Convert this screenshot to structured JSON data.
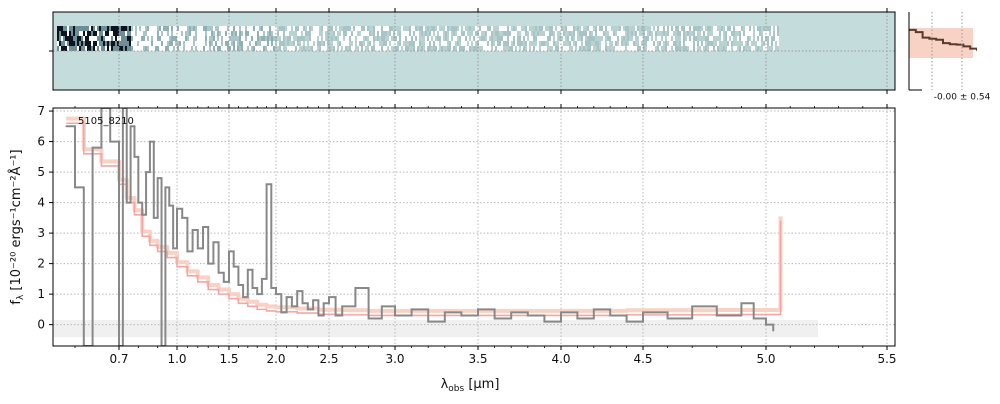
{
  "chart_data": {
    "type": "line",
    "xlabel": "λobs [μm]",
    "xlabel_main": "λ",
    "xlabel_sub": "obs",
    "xlabel_unit": " [μm]",
    "ylabel": "fλ [10⁻²⁰ ergs⁻¹cm⁻²Å⁻¹]",
    "ylabel_main": "f",
    "ylabel_sub": "λ",
    "ylabel_unit": " [10⁻²⁰ ergs⁻¹cm⁻²Å⁻¹]",
    "annotation": "5105_8210",
    "xtick_labels": [
      "0.7",
      "1.0",
      "1.5",
      "2.0",
      "2.5",
      "3.0",
      "3.5",
      "4.0",
      "4.5",
      "5.0",
      "5.5"
    ],
    "ytick_labels": [
      "0",
      "1",
      "2",
      "3",
      "4",
      "5",
      "6",
      "7"
    ],
    "ylim": [
      -0.7,
      7.1
    ],
    "xscale": "sqrt-like (tick labels as printed)",
    "grid": true,
    "series": [
      {
        "role": "data",
        "color": "#888888",
        "x": [
          0.58,
          0.6,
          0.62,
          0.64,
          0.66,
          0.68,
          0.7,
          0.72,
          0.74,
          0.76,
          0.78,
          0.8,
          0.82,
          0.84,
          0.86,
          0.88,
          0.9,
          0.92,
          0.94,
          0.96,
          0.98,
          1.0,
          1.05,
          1.1,
          1.15,
          1.2,
          1.25,
          1.3,
          1.35,
          1.4,
          1.45,
          1.5,
          1.55,
          1.6,
          1.65,
          1.7,
          1.75,
          1.8,
          1.85,
          1.9,
          1.95,
          2.0,
          2.05,
          2.1,
          2.15,
          2.2,
          2.25,
          2.3,
          2.35,
          2.4,
          2.45,
          2.5,
          2.55,
          2.6,
          2.7,
          2.8,
          2.9,
          3.0,
          3.1,
          3.2,
          3.3,
          3.4,
          3.5,
          3.6,
          3.7,
          3.8,
          3.9,
          4.0,
          4.1,
          4.2,
          4.3,
          4.4,
          4.5,
          4.6,
          4.7,
          4.8,
          4.9,
          4.95,
          5.0,
          5.03
        ],
        "y": [
          6.5,
          4.5,
          -0.7,
          5.8,
          7.1,
          6.0,
          -0.7,
          7.1,
          4.0,
          6.5,
          5.5,
          4.0,
          3.6,
          5.0,
          6.0,
          3.5,
          4.8,
          -0.7,
          4.5,
          3.9,
          2.5,
          3.8,
          3.5,
          2.4,
          3.1,
          2.5,
          3.2,
          2.0,
          2.7,
          1.7,
          1.4,
          2.4,
          1.9,
          1.3,
          0.9,
          1.8,
          1.2,
          1.0,
          1.5,
          4.6,
          1.2,
          1.0,
          0.4,
          0.9,
          0.6,
          1.1,
          0.7,
          0.5,
          0.8,
          0.3,
          0.7,
          0.9,
          0.3,
          0.6,
          1.2,
          0.2,
          0.6,
          0.3,
          0.5,
          0.1,
          0.4,
          0.3,
          0.5,
          0.2,
          0.4,
          0.3,
          0.1,
          0.4,
          0.2,
          0.5,
          0.3,
          0.1,
          0.4,
          0.2,
          0.6,
          0.3,
          0.7,
          0.2,
          0.0,
          -0.2
        ]
      },
      {
        "role": "model",
        "color": "#f4a6a6",
        "x": [
          0.58,
          0.62,
          0.66,
          0.7,
          0.74,
          0.78,
          0.82,
          0.86,
          0.9,
          0.95,
          1.0,
          1.1,
          1.2,
          1.3,
          1.4,
          1.5,
          1.6,
          1.7,
          1.8,
          1.9,
          2.0,
          2.2,
          2.4,
          2.6,
          2.8,
          3.0,
          3.3,
          3.6,
          4.0,
          4.4,
          4.8,
          5.0,
          5.06,
          5.06
        ],
        "y": [
          6.6,
          5.6,
          5.2,
          4.6,
          4.0,
          3.6,
          2.9,
          2.6,
          2.4,
          2.2,
          1.9,
          1.6,
          1.4,
          1.15,
          1.0,
          0.85,
          0.7,
          0.6,
          0.5,
          0.45,
          0.42,
          0.38,
          0.34,
          0.32,
          0.3,
          0.3,
          0.3,
          0.3,
          0.3,
          0.32,
          0.33,
          0.33,
          0.35,
          3.4
        ]
      }
    ],
    "side_panel": {
      "label": "-0.00 ± 0.54",
      "profile": [
        0.55,
        0.45,
        0.2,
        0.15,
        0.1,
        -0.05,
        -0.1,
        -0.12,
        -0.2,
        -0.3,
        -0.4
      ]
    }
  },
  "colors": {
    "data_line": "#888888",
    "model_line": "#f4a6a6",
    "model_fill": "#f8d2c4",
    "heatmap_bg": "#c5dcdc",
    "grid": "#b8b8b8",
    "profile_line": "#5a3a2e"
  }
}
